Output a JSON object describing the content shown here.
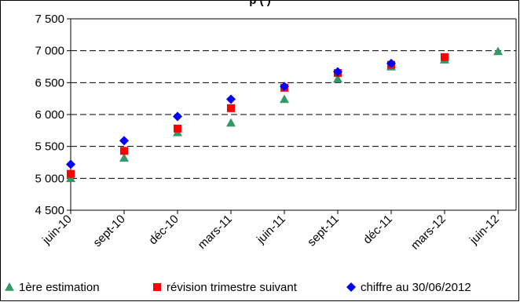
{
  "chart_data": {
    "type": "scatter",
    "title": "… (partially cropped at top edge) …",
    "title_visible_fragment": "p    (    )",
    "categories": [
      "juin-10",
      "sept-10",
      "déc-10",
      "mars-11",
      "juin-11",
      "sept-11",
      "déc-11",
      "mars-12",
      "juin-12"
    ],
    "ylim": [
      4500,
      7500
    ],
    "yticks": [
      4500,
      5000,
      5500,
      6000,
      6500,
      7000,
      7500
    ],
    "ytick_labels": [
      "4 500",
      "5 000",
      "5 500",
      "6 000",
      "6 500",
      "7 000",
      "7 500"
    ],
    "grid": "horizontal dashed",
    "legend_position": "bottom",
    "series": [
      {
        "name": "1ère estimation",
        "marker": "triangle",
        "color": "#339966",
        "values": [
          5000,
          5320,
          5720,
          5870,
          6240,
          6560,
          6750,
          6860,
          6990
        ]
      },
      {
        "name": "révision trimestre suivant",
        "marker": "square",
        "color": "#ff0000",
        "values": [
          5070,
          5430,
          5780,
          6100,
          6420,
          6650,
          6780,
          6900,
          null
        ]
      },
      {
        "name": "chiffre au 30/06/2012",
        "marker": "diamond",
        "color": "#0000ff",
        "values": [
          5220,
          5590,
          5970,
          6240,
          6440,
          6670,
          6800,
          null,
          null
        ]
      }
    ]
  }
}
